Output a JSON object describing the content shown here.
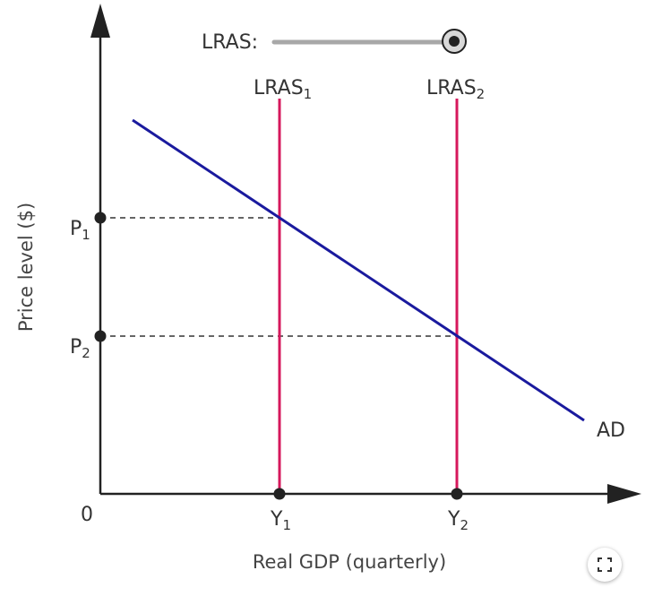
{
  "slider": {
    "label": "LRAS:",
    "value": 1.0
  },
  "lines": {
    "lras1_label": "LRAS",
    "lras1_sub": "1",
    "lras2_label": "LRAS",
    "lras2_sub": "2",
    "ad_label": "AD"
  },
  "axes": {
    "y_title": "Price level ($)",
    "x_title": "Real GDP (quarterly)",
    "origin_label": "0",
    "p1_label": "P",
    "p1_sub": "1",
    "p2_label": "P",
    "p2_sub": "2",
    "y1_label": "Y",
    "y1_sub": "1",
    "y2_label": "Y",
    "y2_sub": "2"
  },
  "colors": {
    "ad": "#1a1a9e",
    "lras": "#d6185c",
    "axis": "#222222",
    "slider_track": "#a8a8a8"
  },
  "icons": {
    "fullscreen": "fullscreen-icon"
  }
}
